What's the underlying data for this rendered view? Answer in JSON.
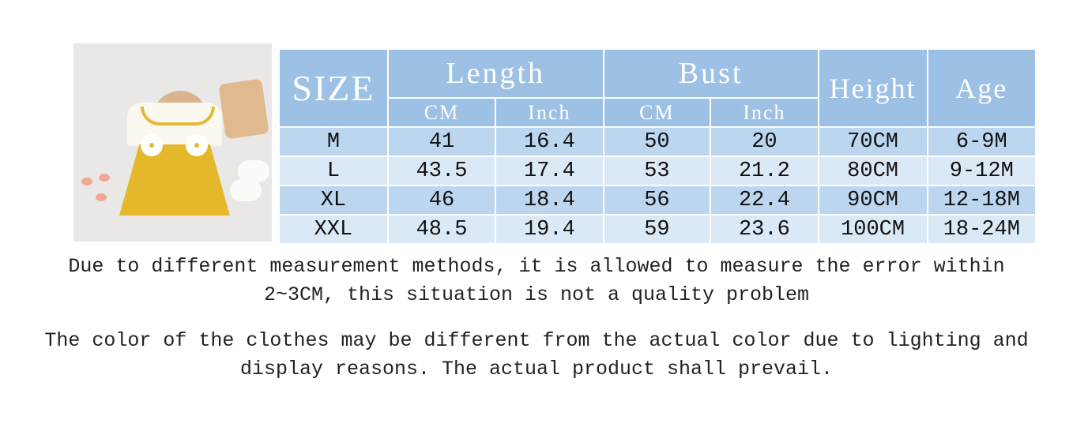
{
  "image": {
    "alt_icon": "product-photo-yellow-dress"
  },
  "table": {
    "size_header": "SIZE",
    "length_header": "Length",
    "bust_header": "Bust",
    "height_header": "Height",
    "age_header": "Age",
    "cm_label": "CM",
    "inch_label": "Inch",
    "rows": [
      {
        "size": "M",
        "length_cm": "41",
        "length_in": "16.4",
        "bust_cm": "50",
        "bust_in": "20",
        "height": "70CM",
        "age": "6-9M"
      },
      {
        "size": "L",
        "length_cm": "43.5",
        "length_in": "17.4",
        "bust_cm": "53",
        "bust_in": "21.2",
        "height": "80CM",
        "age": "9-12M"
      },
      {
        "size": "XL",
        "length_cm": "46",
        "length_in": "18.4",
        "bust_cm": "56",
        "bust_in": "22.4",
        "height": "90CM",
        "age": "12-18M"
      },
      {
        "size": "XXL",
        "length_cm": "48.5",
        "length_in": "19.4",
        "bust_cm": "59",
        "bust_in": "23.6",
        "height": "100CM",
        "age": "18-24M"
      }
    ]
  },
  "notes": {
    "measurement_line1": "Due to different measurement methods, it is allowed to measure the error within",
    "measurement_line2": "2~3CM, this situation is not a quality problem",
    "color_line1": "The color of the clothes may be different from the actual color due to lighting and",
    "color_line2": "display reasons. The actual product shall prevail."
  },
  "colors": {
    "header": "#9dc1e5",
    "row_dark": "#bcd6ef",
    "row_light": "#dbe8f5"
  }
}
